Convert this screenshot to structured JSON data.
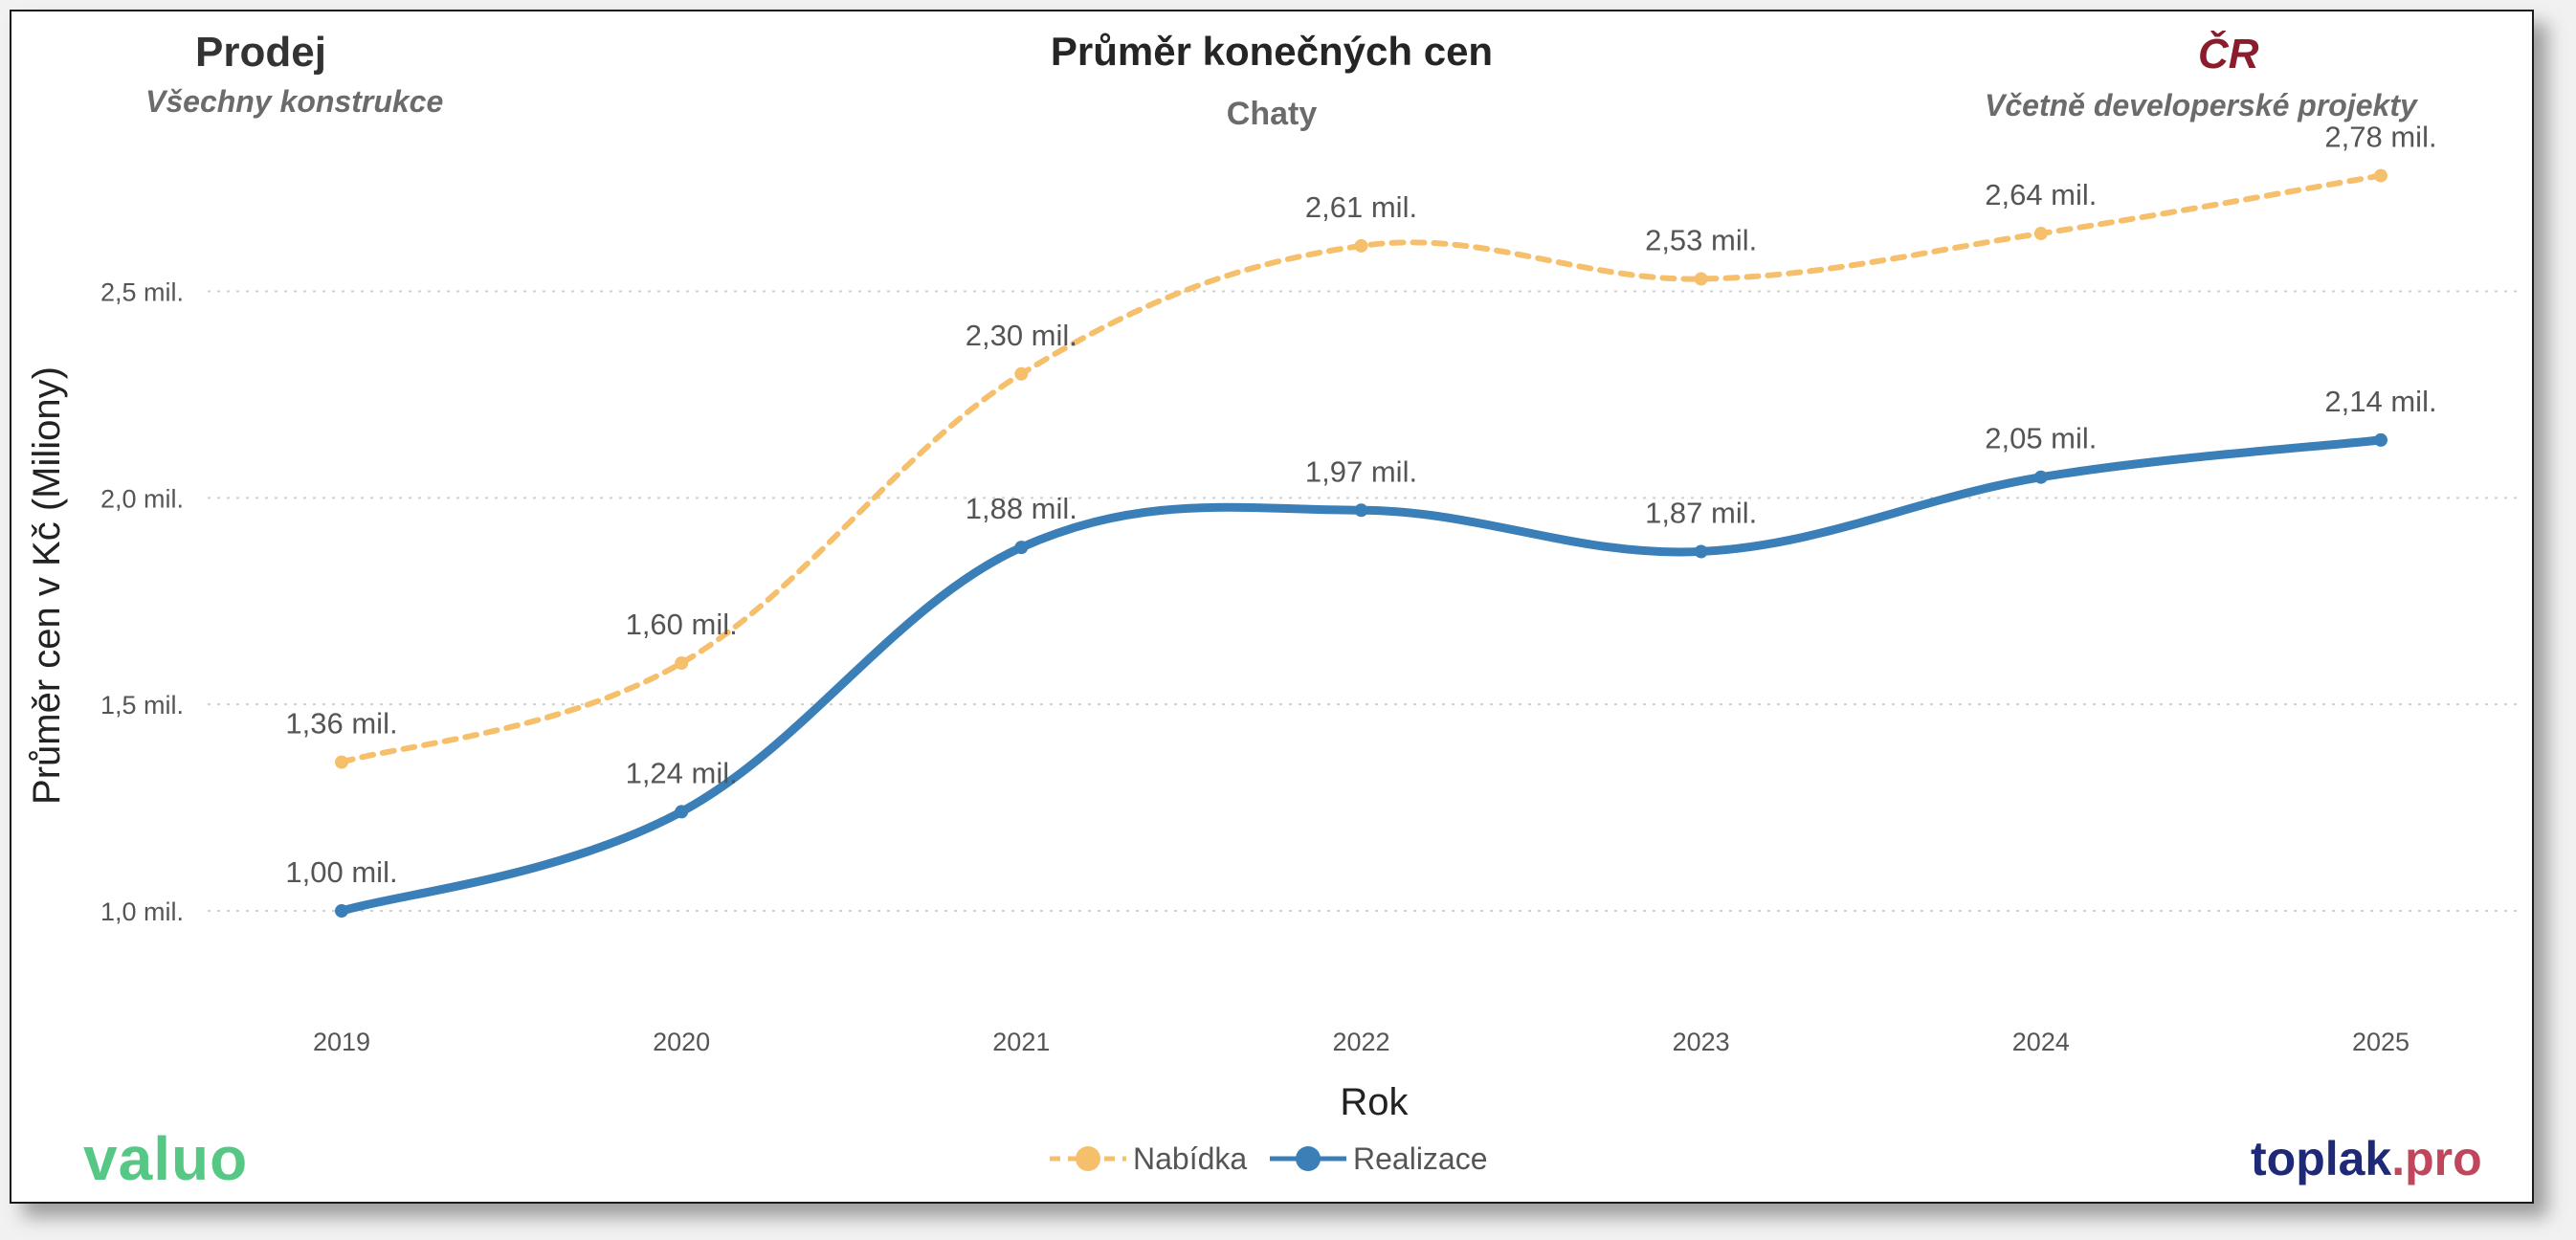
{
  "header": {
    "left_title": "Prodej",
    "left_subtitle": "Všechny konstrukce",
    "center_title": "Průměr konečných cen",
    "center_subtitle": "Chaty",
    "right_title": "ČR",
    "right_subtitle": "Včetně developerské projekty"
  },
  "logos": {
    "left": "valuo",
    "right_main": "toplak",
    "right_ext": ".pro"
  },
  "colors": {
    "nabidka": "#f5bf6b",
    "realizace": "#3a7fb7",
    "grid": "#d0d0d0"
  },
  "chart_data": {
    "type": "line",
    "title": "Průměr konečných cen",
    "subtitle": "Chaty",
    "xlabel": "Rok",
    "ylabel": "Průměr cen v Kč (Miliony)",
    "categories": [
      "2019",
      "2020",
      "2021",
      "2022",
      "2023",
      "2024",
      "2025"
    ],
    "ylim": [
      0.78,
      2.83
    ],
    "yticks": [
      1.0,
      1.5,
      2.0,
      2.5
    ],
    "ytick_labels": [
      "1,0 mil.",
      "1,5 mil.",
      "2,0 mil.",
      "2,5 mil."
    ],
    "grid": true,
    "legend": "bottom-center",
    "series": [
      {
        "name": "Nabídka",
        "style": "dashed",
        "values": [
          1.36,
          1.6,
          2.3,
          2.61,
          2.53,
          2.64,
          2.78
        ],
        "labels": [
          "1,36 mil.",
          "1,60 mil.",
          "2,30 mil.",
          "2,61 mil.",
          "2,53 mil.",
          "2,64 mil.",
          "2,78 mil."
        ]
      },
      {
        "name": "Realizace",
        "style": "solid",
        "values": [
          1.0,
          1.24,
          1.88,
          1.97,
          1.87,
          2.05,
          2.14
        ],
        "labels": [
          "1,00 mil.",
          "1,24 mil.",
          "1,88 mil.",
          "1,97 mil.",
          "1,87 mil.",
          "2,05 mil.",
          "2,14 mil."
        ]
      }
    ]
  }
}
